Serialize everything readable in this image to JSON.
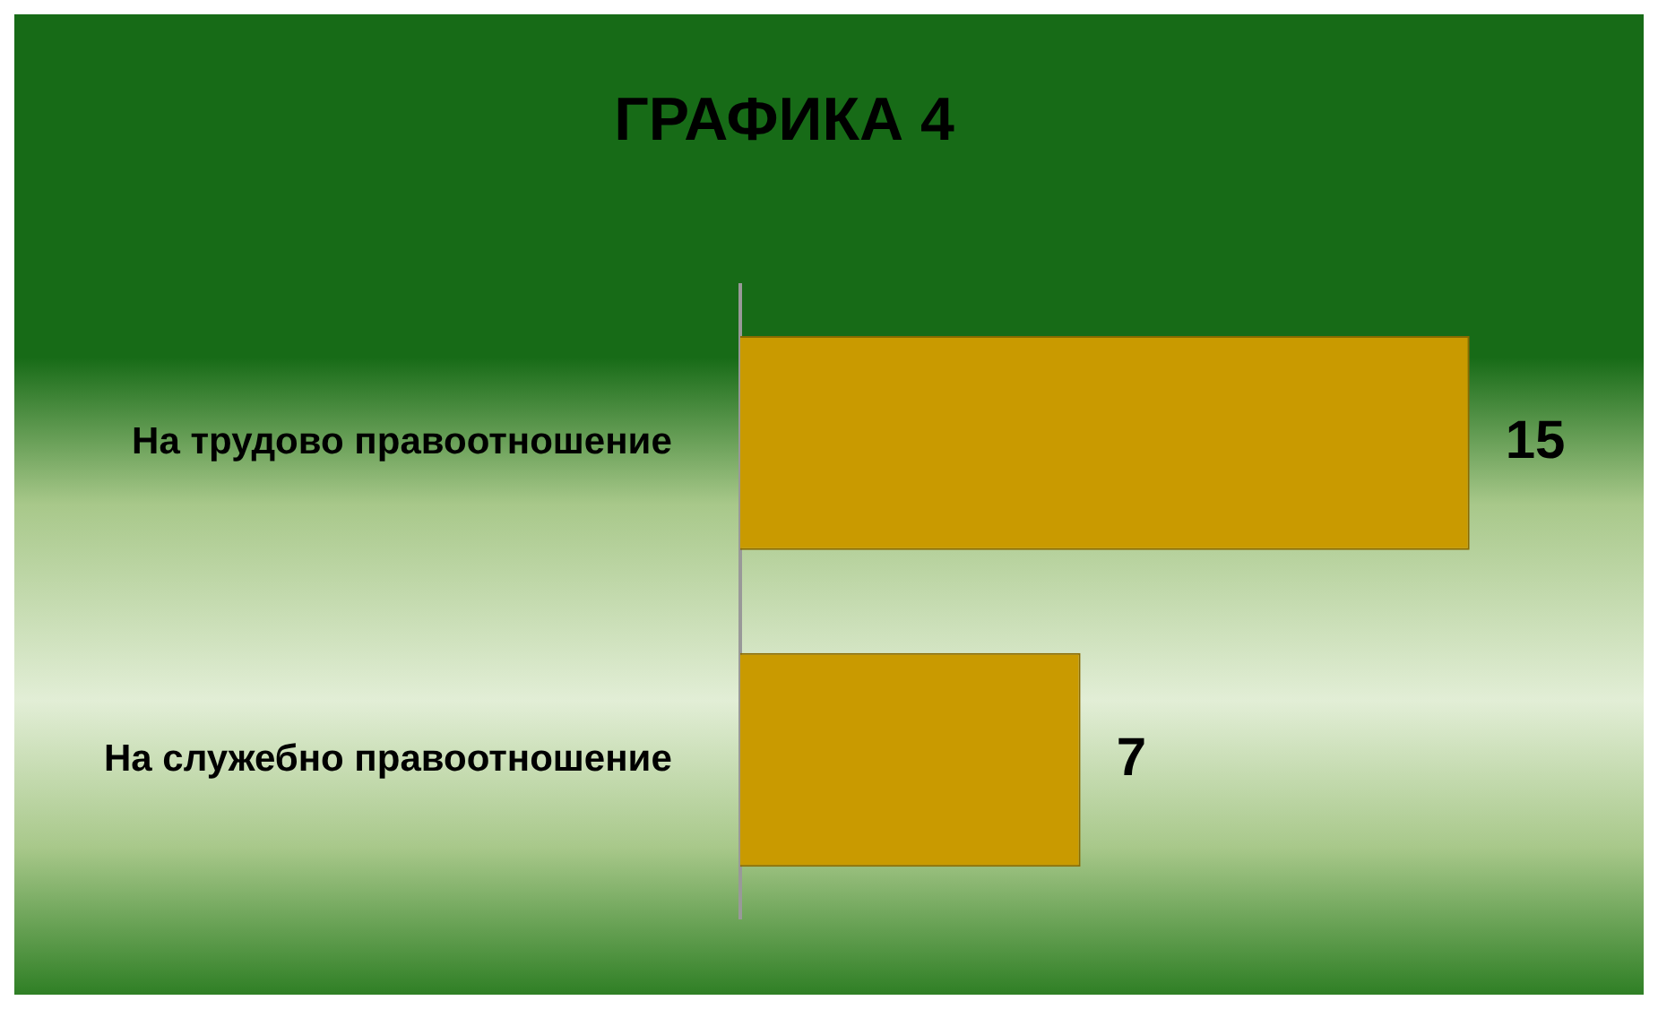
{
  "chart_data": {
    "type": "bar",
    "orientation": "horizontal",
    "title": "ГРАФИКА 4",
    "categories": [
      "На трудово правоотношение",
      "На служебно правоотношение"
    ],
    "values": [
      15,
      7
    ],
    "color": "#c99a00",
    "data_labels": true
  }
}
